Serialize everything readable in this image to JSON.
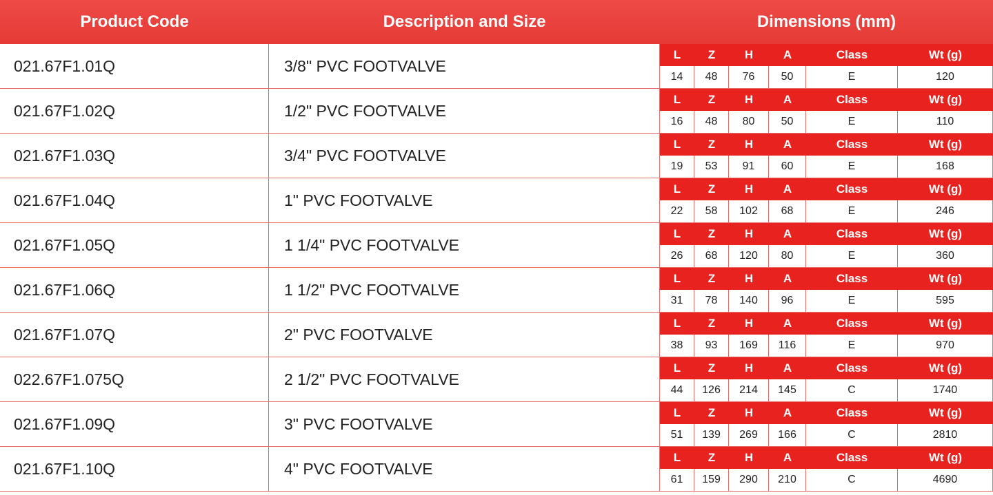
{
  "header": {
    "code": "Product Code",
    "description": "Description and Size",
    "dimensions": "Dimensions (mm)"
  },
  "dimension_labels": [
    "L",
    "Z",
    "H",
    "A",
    "Class",
    "Wt (g)"
  ],
  "rows": [
    {
      "code": "021.67F1.01Q",
      "description": "3/8\" PVC FOOTVALVE",
      "dims": [
        14,
        48,
        76,
        50,
        "E",
        120
      ]
    },
    {
      "code": "021.67F1.02Q",
      "description": "1/2\" PVC FOOTVALVE",
      "dims": [
        16,
        48,
        80,
        50,
        "E",
        110
      ]
    },
    {
      "code": "021.67F1.03Q",
      "description": "3/4\" PVC FOOTVALVE",
      "dims": [
        19,
        53,
        91,
        60,
        "E",
        168
      ]
    },
    {
      "code": "021.67F1.04Q",
      "description": "1\" PVC FOOTVALVE",
      "dims": [
        22,
        58,
        102,
        68,
        "E",
        246
      ]
    },
    {
      "code": "021.67F1.05Q",
      "description": "1 1/4\" PVC FOOTVALVE",
      "dims": [
        26,
        68,
        120,
        80,
        "E",
        360
      ]
    },
    {
      "code": "021.67F1.06Q",
      "description": "1 1/2\" PVC FOOTVALVE",
      "dims": [
        31,
        78,
        140,
        96,
        "E",
        595
      ]
    },
    {
      "code": "021.67F1.07Q",
      "description": "2\" PVC FOOTVALVE",
      "dims": [
        38,
        93,
        169,
        116,
        "E",
        970
      ]
    },
    {
      "code": "022.67F1.075Q",
      "description": "2 1/2\" PVC FOOTVALVE",
      "dims": [
        44,
        126,
        214,
        145,
        "C",
        1740
      ]
    },
    {
      "code": "021.67F1.09Q",
      "description": "3\" PVC FOOTVALVE",
      "dims": [
        51,
        139,
        269,
        166,
        "C",
        2810
      ]
    },
    {
      "code": "021.67F1.10Q",
      "description": "4\" PVC FOOTVALVE",
      "dims": [
        61,
        159,
        290,
        210,
        "C",
        4690
      ]
    }
  ]
}
